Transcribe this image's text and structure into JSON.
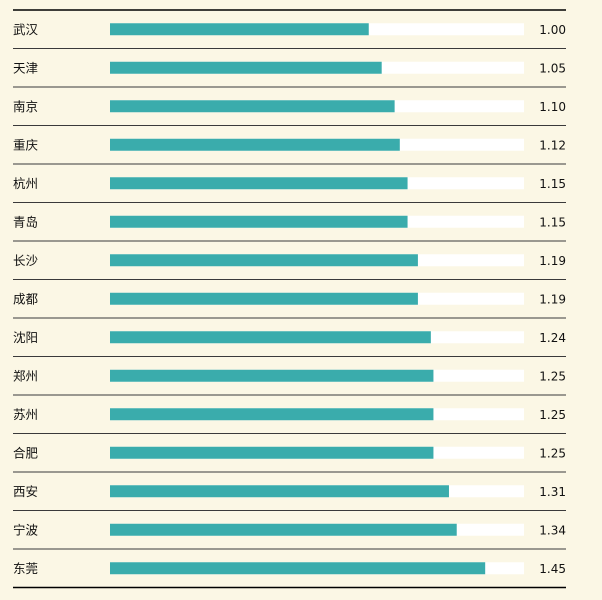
{
  "chart_data": {
    "type": "bar",
    "orientation": "horizontal",
    "categories": [
      "武汉",
      "天津",
      "南京",
      "重庆",
      "杭州",
      "青岛",
      "长沙",
      "成都",
      "沈阳",
      "郑州",
      "苏州",
      "合肥",
      "西安",
      "宁波",
      "东莞"
    ],
    "values": [
      1.0,
      1.05,
      1.1,
      1.12,
      1.15,
      1.15,
      1.19,
      1.19,
      1.24,
      1.25,
      1.25,
      1.25,
      1.31,
      1.34,
      1.45
    ],
    "value_labels": [
      "1.00",
      "1.05",
      "1.10",
      "1.12",
      "1.15",
      "1.15",
      "1.19",
      "1.19",
      "1.24",
      "1.25",
      "1.25",
      "1.25",
      "1.31",
      "1.34",
      "1.45"
    ],
    "xlim": [
      0,
      1.6
    ],
    "title": "",
    "xlabel": "",
    "ylabel": "",
    "grid": false,
    "colors": {
      "bar": "#3aacac",
      "track": "#ffffff",
      "background": "#fbf7e5",
      "rule": "#3a3a3a"
    }
  }
}
